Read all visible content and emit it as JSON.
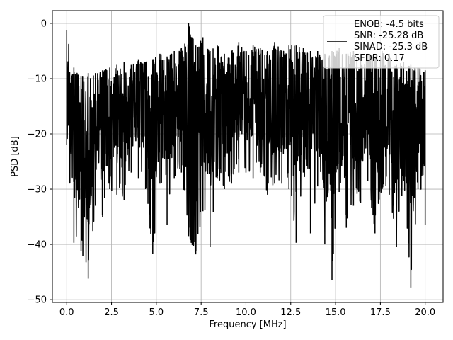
{
  "chart_data": {
    "type": "line",
    "title": "",
    "xlabel": "Frequency [MHz]",
    "ylabel": "PSD [dB]",
    "xlim": [
      -0.8,
      21.0
    ],
    "ylim": [
      -50.5,
      2.3
    ],
    "xticks": [
      0.0,
      2.5,
      5.0,
      7.5,
      10.0,
      12.5,
      15.0,
      17.5,
      20.0
    ],
    "xtick_labels": [
      "0.0",
      "2.5",
      "5.0",
      "7.5",
      "10.0",
      "12.5",
      "15.0",
      "17.5",
      "20.0"
    ],
    "yticks": [
      0,
      -10,
      -20,
      -30,
      -40,
      -50
    ],
    "ytick_labels": [
      "0",
      "−10",
      "−20",
      "−30",
      "−40",
      "−50"
    ],
    "grid": true,
    "legend_position": "top-right",
    "series": [
      {
        "name": "ENOB: -4.5 bits\nSNR: -25.28 dB\nSINAD: -25.3 dB\nSFDR: 0.17",
        "color": "#000000",
        "x": [
          0.0,
          0.4,
          0.8,
          1.2,
          1.6,
          2.0,
          2.4,
          2.8,
          3.2,
          3.6,
          4.0,
          4.4,
          4.8,
          5.2,
          5.6,
          6.0,
          6.4,
          6.8,
          7.2,
          7.6,
          8.0,
          8.4,
          8.8,
          9.2,
          9.6,
          10.0,
          10.4,
          10.8,
          11.2,
          11.6,
          12.0,
          12.4,
          12.8,
          13.2,
          13.6,
          14.0,
          14.4,
          14.8,
          15.2,
          15.6,
          16.0,
          16.4,
          16.8,
          17.2,
          17.6,
          18.0,
          18.4,
          18.8,
          19.2,
          19.6,
          20.0
        ],
        "upper": [
          -1.2,
          -8.0,
          -9.5,
          -9.0,
          -9.0,
          -8.5,
          -8.0,
          -7.5,
          -7.0,
          -7.5,
          -6.5,
          -7.0,
          -6.5,
          -5.5,
          -6.0,
          -5.0,
          -4.5,
          0.0,
          -4.0,
          -2.5,
          -5.0,
          -4.0,
          -5.5,
          -5.0,
          -3.5,
          -5.0,
          -4.0,
          -4.5,
          -5.0,
          -3.5,
          -5.0,
          -4.0,
          -4.0,
          -4.5,
          -5.0,
          -5.0,
          -5.5,
          -5.0,
          -4.5,
          -5.5,
          -5.0,
          -5.5,
          -5.5,
          -6.0,
          -5.0,
          -5.5,
          -7.5,
          -7.0,
          -7.5,
          -8.0,
          -8.5
        ],
        "lower": [
          -22.0,
          -39.7,
          -41.2,
          -46.2,
          -33.0,
          -35.0,
          -30.0,
          -31.0,
          -32.0,
          -27.0,
          -28.0,
          -30.0,
          -41.7,
          -29.0,
          -36.5,
          -28.0,
          -27.0,
          -38.5,
          -41.8,
          -34.0,
          -40.5,
          -28.0,
          -30.0,
          -29.0,
          -27.0,
          -27.0,
          -28.0,
          -27.0,
          -31.0,
          -29.0,
          -29.0,
          -30.0,
          -39.7,
          -27.0,
          -38.0,
          -29.5,
          -40.0,
          -46.5,
          -30.5,
          -37.0,
          -33.0,
          -32.5,
          -28.5,
          -38.0,
          -30.0,
          -31.0,
          -40.5,
          -28.5,
          -47.8,
          -30.0,
          -36.5
        ]
      }
    ]
  }
}
